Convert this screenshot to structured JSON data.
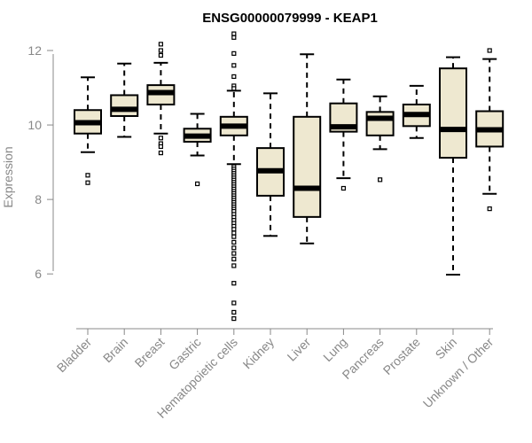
{
  "chart_data": {
    "type": "boxplot",
    "title": "ENSG00000079999 - KEAP1",
    "xlabel": "",
    "ylabel": "Expression",
    "ylim": [
      4.6,
      12.5
    ],
    "yticks": [
      6,
      8,
      10,
      12
    ],
    "grid": false,
    "box_fill": "#eee8d0",
    "categories": [
      "Bladder",
      "Brain",
      "Breast",
      "Gastric",
      "Hematopoietic cells",
      "Kidney",
      "Liver",
      "Lung",
      "Pancreas",
      "Prostate",
      "Skin",
      "Unknown / Other"
    ],
    "boxes": [
      {
        "whisker_low": 9.27,
        "q1": 9.77,
        "median": 10.06,
        "q3": 10.4,
        "whisker_high": 11.28,
        "outliers": [
          8.65,
          8.45
        ]
      },
      {
        "whisker_low": 9.68,
        "q1": 10.24,
        "median": 10.42,
        "q3": 10.8,
        "whisker_high": 11.65,
        "outliers": []
      },
      {
        "whisker_low": 9.77,
        "q1": 10.55,
        "median": 10.87,
        "q3": 11.07,
        "whisker_high": 11.67,
        "outliers": [
          12.17,
          12.0,
          11.87,
          9.65,
          9.5,
          9.42,
          9.25
        ]
      },
      {
        "whisker_low": 9.18,
        "q1": 9.55,
        "median": 9.7,
        "q3": 9.9,
        "whisker_high": 10.3,
        "outliers": [
          8.42
        ]
      },
      {
        "whisker_low": 8.95,
        "q1": 9.72,
        "median": 9.97,
        "q3": 10.22,
        "whisker_high": 10.92,
        "outliers": [
          12.45,
          12.35,
          11.92,
          11.6,
          11.3,
          11.05,
          10.98,
          8.88,
          8.82,
          8.76,
          8.7,
          8.64,
          8.58,
          8.52,
          8.46,
          8.4,
          8.34,
          8.28,
          8.22,
          8.16,
          8.1,
          8.04,
          7.98,
          7.92,
          7.86,
          7.8,
          7.74,
          7.68,
          7.6,
          7.52,
          7.44,
          7.36,
          7.28,
          7.2,
          7.1,
          7.0,
          6.85,
          6.7,
          6.55,
          6.4,
          6.22,
          5.75,
          5.22,
          4.97,
          4.8
        ]
      },
      {
        "whisker_low": 7.02,
        "q1": 8.1,
        "median": 8.77,
        "q3": 9.38,
        "whisker_high": 10.85,
        "outliers": []
      },
      {
        "whisker_low": 6.82,
        "q1": 7.53,
        "median": 8.3,
        "q3": 10.22,
        "whisker_high": 11.9,
        "outliers": []
      },
      {
        "whisker_low": 8.57,
        "q1": 9.82,
        "median": 9.95,
        "q3": 10.58,
        "whisker_high": 11.22,
        "outliers": [
          8.3
        ]
      },
      {
        "whisker_low": 9.35,
        "q1": 9.72,
        "median": 10.18,
        "q3": 10.35,
        "whisker_high": 10.77,
        "outliers": [
          8.53
        ]
      },
      {
        "whisker_low": 9.65,
        "q1": 9.97,
        "median": 10.28,
        "q3": 10.55,
        "whisker_high": 11.05,
        "outliers": []
      },
      {
        "whisker_low": 5.98,
        "q1": 9.12,
        "median": 9.88,
        "q3": 11.52,
        "whisker_high": 11.82,
        "outliers": []
      },
      {
        "whisker_low": 8.15,
        "q1": 9.42,
        "median": 9.87,
        "q3": 10.37,
        "whisker_high": 11.77,
        "outliers": [
          12.0,
          7.75
        ]
      }
    ]
  }
}
